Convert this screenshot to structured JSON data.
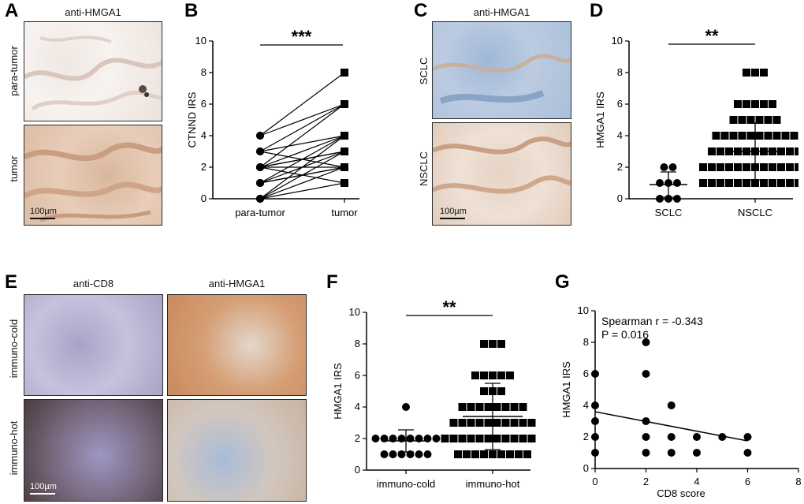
{
  "panels": {
    "A": {
      "letter": "A",
      "title": "anti-HMGA1",
      "row_labels": [
        "para-tumor",
        "tumor"
      ],
      "scale": "100µm"
    },
    "C": {
      "letter": "C",
      "title": "anti-HMGA1",
      "row_labels": [
        "SCLC",
        "NSCLC"
      ],
      "scale": "100µm"
    },
    "E": {
      "letter": "E",
      "col_titles": [
        "anti-CD8",
        "anti-HMGA1"
      ],
      "row_labels": [
        "immuno-cold",
        "immuno-hot"
      ],
      "scale": "100µm"
    },
    "B": {
      "letter": "B"
    },
    "D": {
      "letter": "D"
    },
    "F": {
      "letter": "F"
    },
    "G": {
      "letter": "G"
    }
  },
  "chart_data": [
    {
      "id": "B",
      "type": "line",
      "ylabel": "CTNND IRS",
      "categories": [
        "para-tumor",
        "tumor"
      ],
      "ylim": [
        0,
        10
      ],
      "yticks": [
        0,
        2,
        4,
        6,
        8,
        10
      ],
      "significance": "***",
      "pairs": [
        [
          4,
          8
        ],
        [
          4,
          6
        ],
        [
          3,
          6
        ],
        [
          3,
          4
        ],
        [
          2,
          4
        ],
        [
          2,
          3
        ],
        [
          2,
          3
        ],
        [
          2,
          2
        ],
        [
          1,
          2
        ],
        [
          1,
          4
        ],
        [
          2,
          1
        ],
        [
          3,
          2
        ],
        [
          1,
          3
        ],
        [
          0,
          2
        ],
        [
          0,
          1
        ],
        [
          0,
          4
        ],
        [
          0,
          3
        ],
        [
          2,
          6
        ],
        [
          1,
          2
        ]
      ]
    },
    {
      "id": "D",
      "type": "scatter",
      "ylabel": "HMGA1 IRS",
      "categories": [
        "SCLC",
        "NSCLC"
      ],
      "ylim": [
        0,
        10
      ],
      "yticks": [
        0,
        2,
        4,
        6,
        8,
        10
      ],
      "significance": "**",
      "series": [
        {
          "category": "SCLC",
          "marker": "circle",
          "values": [
            2,
            2,
            1,
            1,
            1,
            0,
            0,
            0
          ],
          "mean": 0.9,
          "sd": 0.8
        },
        {
          "category": "NSCLC",
          "marker": "square",
          "values": [
            8,
            8,
            8,
            6,
            6,
            6,
            6,
            6,
            5,
            5,
            5,
            5,
            5,
            5,
            4,
            4,
            4,
            4,
            4,
            4,
            4,
            4,
            4,
            4,
            3,
            3,
            3,
            3,
            3,
            3,
            3,
            3,
            3,
            3,
            3,
            2,
            2,
            2,
            2,
            2,
            2,
            2,
            2,
            2,
            2,
            2,
            2,
            2,
            1,
            1,
            1,
            1,
            1,
            1,
            1,
            1,
            1,
            1,
            1,
            1,
            1
          ],
          "mean": 3.0,
          "sd": 1.8
        }
      ]
    },
    {
      "id": "F",
      "type": "scatter",
      "ylabel": "HMGA1 IRS",
      "categories": [
        "immuno-cold",
        "immuno-hot"
      ],
      "ylim": [
        0,
        10
      ],
      "yticks": [
        0,
        2,
        4,
        6,
        8,
        10
      ],
      "significance": "**",
      "series": [
        {
          "category": "immuno-cold",
          "marker": "circle",
          "values": [
            4,
            2,
            2,
            2,
            2,
            2,
            2,
            2,
            2,
            1,
            1,
            1,
            1,
            1,
            1
          ],
          "mean": 1.85,
          "sd": 0.7
        },
        {
          "category": "immuno-hot",
          "marker": "square",
          "values": [
            8,
            8,
            8,
            6,
            6,
            6,
            6,
            6,
            5,
            5,
            5,
            4,
            4,
            4,
            4,
            4,
            4,
            4,
            4,
            3,
            3,
            3,
            3,
            3,
            3,
            3,
            3,
            3,
            3,
            2,
            2,
            2,
            2,
            2,
            2,
            2,
            2,
            2,
            2,
            2,
            2,
            1,
            1,
            1,
            1,
            1,
            1,
            1,
            1,
            1
          ],
          "mean": 3.4,
          "sd": 2.1
        }
      ]
    },
    {
      "id": "G",
      "type": "scatter",
      "xlabel": "CD8 score",
      "ylabel": "HMGA1 IRS",
      "xlim": [
        0,
        8
      ],
      "ylim": [
        0,
        10
      ],
      "xticks": [
        0,
        2,
        4,
        6,
        8
      ],
      "yticks": [
        0,
        2,
        4,
        6,
        8,
        10
      ],
      "annotations": [
        "Spearman r = -0.343",
        "P = 0.016"
      ],
      "points": [
        [
          0,
          6
        ],
        [
          0,
          4
        ],
        [
          0,
          3
        ],
        [
          0,
          2
        ],
        [
          0,
          1
        ],
        [
          2,
          8
        ],
        [
          2,
          6
        ],
        [
          2,
          3
        ],
        [
          2,
          2
        ],
        [
          2,
          1
        ],
        [
          3,
          4
        ],
        [
          3,
          2
        ],
        [
          3,
          1
        ],
        [
          4,
          2
        ],
        [
          4,
          1
        ],
        [
          5,
          2
        ],
        [
          6,
          2
        ],
        [
          6,
          1
        ]
      ],
      "fit": {
        "x": [
          0,
          6
        ],
        "y": [
          3.6,
          1.75
        ]
      }
    }
  ]
}
